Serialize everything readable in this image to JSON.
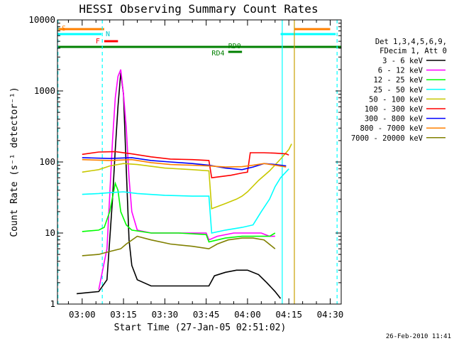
{
  "chart_data": {
    "type": "line",
    "title": "HESSI Observing Summary Count Rates",
    "xlabel": "Start Time (27-Jan-05 02:51:02)",
    "ylabel": "Count Rate (s⁻¹ detector⁻¹)",
    "x_tick_labels": [
      "03:00",
      "03:15",
      "03:30",
      "03:45",
      "04:00",
      "04:15",
      "04:30"
    ],
    "x_tick_minutes": [
      180,
      195,
      210,
      225,
      240,
      255,
      270
    ],
    "xlim_minutes": [
      171.03,
      274.0
    ],
    "y_scale": "log",
    "ylim": [
      1,
      10000
    ],
    "y_tick_labels": [
      "1",
      "10",
      "100",
      "1000",
      "10000"
    ],
    "y_tick_values": [
      1,
      10,
      100,
      1000,
      10000
    ],
    "grid": false,
    "legend_position": "right",
    "legend_header": [
      "Det 1,3,4,5,6,9,",
      "FDecim 1, Att 0"
    ],
    "footer_date": "26-Feb-2010 11:41",
    "series": [
      {
        "name": "3 - 6 keV",
        "color": "#000000",
        "points": [
          [
            171,
            1.4
          ],
          [
            178,
            1.4
          ],
          [
            186,
            1.5
          ],
          [
            189,
            2.2
          ],
          [
            191,
            30
          ],
          [
            192,
            150
          ],
          [
            193,
            600
          ],
          [
            194,
            1800
          ],
          [
            195,
            900
          ],
          [
            196,
            80
          ],
          [
            197,
            8
          ],
          [
            198,
            3.5
          ],
          [
            200,
            2.2
          ],
          [
            205,
            1.8
          ],
          [
            212,
            1.8
          ],
          [
            220,
            1.8
          ],
          [
            226,
            1.8
          ],
          [
            228,
            2.5
          ],
          [
            232,
            2.8
          ],
          [
            236,
            3.0
          ],
          [
            240,
            3.0
          ],
          [
            244,
            2.6
          ],
          [
            247,
            2.0
          ],
          [
            250,
            1.5
          ],
          [
            252,
            1.2
          ]
        ]
      },
      {
        "name": "6 - 12 keV",
        "color": "#ff00ff",
        "points": [
          [
            171,
            1.6
          ],
          [
            186,
            1.6
          ],
          [
            189,
            6
          ],
          [
            191,
            200
          ],
          [
            192,
            800
          ],
          [
            193,
            1600
          ],
          [
            194,
            2000
          ],
          [
            195,
            900
          ],
          [
            196,
            300
          ],
          [
            197,
            60
          ],
          [
            198,
            20
          ],
          [
            200,
            11
          ],
          [
            205,
            10
          ],
          [
            215,
            10
          ],
          [
            225,
            10
          ],
          [
            226,
            8
          ],
          [
            229,
            9
          ],
          [
            235,
            10
          ],
          [
            240,
            10
          ],
          [
            245,
            10
          ],
          [
            248,
            9
          ],
          [
            250,
            9
          ]
        ]
      },
      {
        "name": "12 - 25 keV",
        "color": "#00ff00",
        "points": [
          [
            171,
            10
          ],
          [
            180,
            10.5
          ],
          [
            186,
            11
          ],
          [
            188,
            12
          ],
          [
            190,
            20
          ],
          [
            192,
            50
          ],
          [
            193,
            40
          ],
          [
            194,
            20
          ],
          [
            196,
            13
          ],
          [
            198,
            11
          ],
          [
            205,
            10
          ],
          [
            215,
            10
          ],
          [
            225,
            9.5
          ],
          [
            226,
            7.5
          ],
          [
            232,
            8.5
          ],
          [
            238,
            9
          ],
          [
            244,
            9
          ],
          [
            248,
            9
          ],
          [
            250,
            10
          ]
        ]
      },
      {
        "name": "25 - 50 keV",
        "color": "#00ffff",
        "points": [
          [
            171,
            35
          ],
          [
            180,
            35
          ],
          [
            186,
            36
          ],
          [
            190,
            37
          ],
          [
            195,
            38
          ],
          [
            200,
            36
          ],
          [
            210,
            34
          ],
          [
            220,
            33
          ],
          [
            226,
            33
          ],
          [
            227,
            10
          ],
          [
            232,
            11
          ],
          [
            238,
            12
          ],
          [
            242,
            13
          ],
          [
            245,
            20
          ],
          [
            248,
            30
          ],
          [
            250,
            45
          ],
          [
            252,
            60
          ],
          [
            255,
            80
          ]
        ]
      },
      {
        "name": "50 - 100 keV",
        "color": "#c8c800",
        "points": [
          [
            171,
            75
          ],
          [
            180,
            72
          ],
          [
            186,
            78
          ],
          [
            190,
            88
          ],
          [
            195,
            95
          ],
          [
            200,
            92
          ],
          [
            210,
            82
          ],
          [
            220,
            78
          ],
          [
            226,
            75
          ],
          [
            227,
            22
          ],
          [
            232,
            26
          ],
          [
            236,
            30
          ],
          [
            238,
            33
          ],
          [
            240,
            38
          ],
          [
            244,
            55
          ],
          [
            248,
            75
          ],
          [
            252,
            110
          ],
          [
            255,
            150
          ],
          [
            256,
            180
          ]
        ]
      },
      {
        "name": "100 - 300 keV",
        "color": "#ff0000",
        "points": [
          [
            171,
            135
          ],
          [
            180,
            128
          ],
          [
            186,
            138
          ],
          [
            192,
            140
          ],
          [
            198,
            130
          ],
          [
            205,
            118
          ],
          [
            212,
            110
          ],
          [
            220,
            108
          ],
          [
            226,
            105
          ],
          [
            227,
            60
          ],
          [
            234,
            65
          ],
          [
            238,
            70
          ],
          [
            240,
            72
          ],
          [
            241,
            135
          ],
          [
            246,
            135
          ],
          [
            250,
            133
          ],
          [
            254,
            130
          ],
          [
            255,
            125
          ]
        ]
      },
      {
        "name": "300 - 800 keV",
        "color": "#0000ff",
        "points": [
          [
            171,
            130
          ],
          [
            180,
            115
          ],
          [
            190,
            112
          ],
          [
            198,
            115
          ],
          [
            205,
            105
          ],
          [
            212,
            100
          ],
          [
            220,
            95
          ],
          [
            226,
            90
          ],
          [
            232,
            82
          ],
          [
            238,
            78
          ],
          [
            242,
            85
          ],
          [
            246,
            95
          ],
          [
            250,
            92
          ],
          [
            254,
            88
          ]
        ]
      },
      {
        "name": "800 - 7000 keV",
        "color": "#ff8000",
        "points": [
          [
            171,
            120
          ],
          [
            180,
            108
          ],
          [
            190,
            105
          ],
          [
            198,
            108
          ],
          [
            205,
            98
          ],
          [
            212,
            92
          ],
          [
            220,
            90
          ],
          [
            226,
            88
          ],
          [
            232,
            85
          ],
          [
            238,
            86
          ],
          [
            242,
            90
          ],
          [
            246,
            95
          ],
          [
            250,
            90
          ],
          [
            254,
            85
          ]
        ]
      },
      {
        "name": "7000 - 20000 keV",
        "color": "#808000",
        "points": [
          [
            171,
            5
          ],
          [
            180,
            4.8
          ],
          [
            186,
            5
          ],
          [
            190,
            5.5
          ],
          [
            194,
            6
          ],
          [
            196,
            7
          ],
          [
            200,
            9
          ],
          [
            205,
            8
          ],
          [
            212,
            7
          ],
          [
            220,
            6.5
          ],
          [
            226,
            6
          ],
          [
            229,
            7
          ],
          [
            233,
            8
          ],
          [
            238,
            8.5
          ],
          [
            242,
            8.5
          ],
          [
            246,
            8
          ],
          [
            250,
            6
          ]
        ]
      }
    ],
    "flags": {
      "saa_label": "S",
      "saa_color": "#ff8000",
      "saa_bars": [
        [
          171,
          188
        ],
        [
          257,
          270
        ]
      ],
      "night_label": "N",
      "night_color": "#00ffff",
      "night_bars": [
        [
          171,
          187
        ],
        [
          252,
          272
        ]
      ],
      "flare_label": "F",
      "flare_color": "#ff0000",
      "flare_bars": [
        [
          188,
          193
        ]
      ],
      "rd0_label": "RD0",
      "rd4_label": "RD4",
      "decim_color": "#008000",
      "rd0_bars": [
        [
          171,
          274
        ]
      ],
      "rd4_bars": [
        [
          233,
          238
        ]
      ]
    },
    "vertical_markers": [
      {
        "x": 171.2,
        "color": "#00ffff",
        "style": "dashed"
      },
      {
        "x": 187.3,
        "color": "#00ffff",
        "style": "dashed"
      },
      {
        "x": 252.6,
        "color": "#00ffff",
        "style": "solid"
      },
      {
        "x": 257.0,
        "color": "#c8a000",
        "style": "solid"
      },
      {
        "x": 272.5,
        "color": "#00ffff",
        "style": "dashed"
      }
    ]
  }
}
